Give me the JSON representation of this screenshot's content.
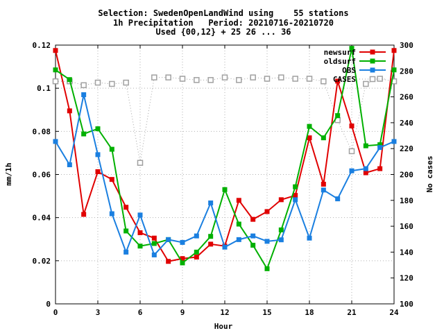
{
  "chart_data": {
    "type": "line",
    "title_lines": [
      "Selection: SwedenOpenLandWind using    55 stations",
      "1h Precipitation   Period: 20210716-20210720",
      "Used {00,12} + 25 26 ... 36"
    ],
    "xlabel": "Hour",
    "ylabel": "mm/1h",
    "y2label": "No cases",
    "xlim": [
      0,
      24
    ],
    "ylim": [
      0,
      0.12
    ],
    "y2lim": [
      100,
      300
    ],
    "x_ticks": [
      0,
      3,
      6,
      9,
      12,
      15,
      18,
      21,
      24
    ],
    "y_tick_labels": [
      "0",
      "0.02",
      "0.04",
      "0.06",
      "0.08",
      "0.1",
      "0.12"
    ],
    "y2_tick_labels": [
      "100",
      "120",
      "140",
      "160",
      "180",
      "200",
      "220",
      "240",
      "260",
      "280",
      "300"
    ],
    "grid": true,
    "legend_position": "top-right",
    "x": [
      0,
      1,
      2,
      3,
      4,
      5,
      6,
      7,
      8,
      9,
      10,
      11,
      12,
      13,
      14,
      15,
      16,
      17,
      18,
      19,
      20,
      21,
      22,
      23,
      24
    ],
    "series": [
      {
        "name": "newsurf",
        "axis": "left",
        "color": "#e00000",
        "marker": "filled-square",
        "values": [
          0.1175,
          0.0895,
          0.0415,
          0.0613,
          0.0577,
          0.0448,
          0.033,
          0.0305,
          0.0197,
          0.021,
          0.0217,
          0.0277,
          0.0268,
          0.048,
          0.0392,
          0.0428,
          0.0483,
          0.0503,
          0.077,
          0.0555,
          0.1033,
          0.0825,
          0.0608,
          0.0627,
          0.1175
        ]
      },
      {
        "name": "oldsurf",
        "axis": "left",
        "color": "#00b000",
        "marker": "filled-square",
        "values": [
          0.1085,
          0.104,
          0.0788,
          0.0812,
          0.0717,
          0.0338,
          0.0268,
          0.028,
          0.0298,
          0.019,
          0.024,
          0.0313,
          0.053,
          0.037,
          0.0272,
          0.0163,
          0.0343,
          0.0543,
          0.0823,
          0.077,
          0.0873,
          0.1185,
          0.0733,
          0.0738,
          0.1085
        ]
      },
      {
        "name": "OBS",
        "axis": "left",
        "color": "#1a7fe0",
        "marker": "filled-square",
        "values": [
          0.0753,
          0.0645,
          0.097,
          0.0692,
          0.0418,
          0.024,
          0.0412,
          0.0227,
          0.0298,
          0.0285,
          0.0315,
          0.0468,
          0.0263,
          0.0298,
          0.0315,
          0.029,
          0.0297,
          0.0483,
          0.0305,
          0.0528,
          0.0487,
          0.0617,
          0.0627,
          0.0725,
          0.0753
        ]
      },
      {
        "name": "CASES",
        "axis": "right",
        "color": "#a0a0a0",
        "marker": "open-square",
        "dashed": true,
        "values": [
          272,
          272,
          269,
          271,
          270,
          271,
          209,
          275,
          275,
          274,
          273,
          273,
          275,
          273,
          275,
          274,
          275,
          274,
          274,
          272,
          242,
          218,
          270,
          274,
          272
        ]
      }
    ]
  }
}
